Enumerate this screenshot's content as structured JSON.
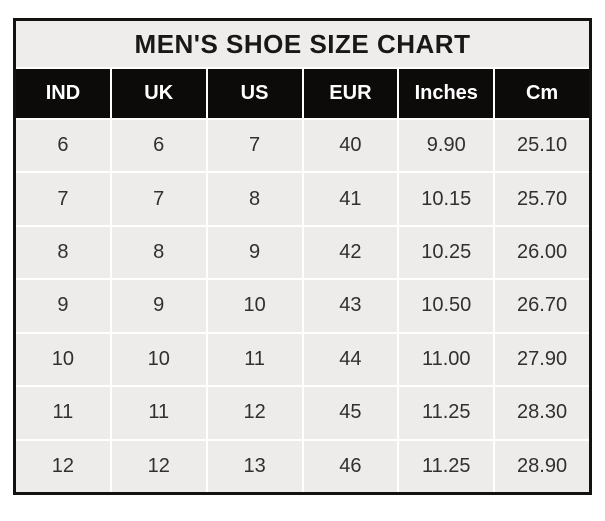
{
  "page": {
    "background_color": "#ffffff"
  },
  "table": {
    "title": "MEN'S SHOE SIZE CHART",
    "border_color": "#141211",
    "title_bg_color": "#efedec",
    "header_bg_color": "#0d0b0a",
    "header_text_color": "#ffffff",
    "cell_bg_color": "#eeeceb",
    "cell_text_color": "#32302f"
  },
  "chart_data": {
    "type": "table",
    "title": "MEN'S SHOE SIZE CHART",
    "columns": [
      "IND",
      "UK",
      "US",
      "EUR",
      "Inches",
      "Cm"
    ],
    "rows": [
      [
        "6",
        "6",
        "7",
        "40",
        "9.90",
        "25.10"
      ],
      [
        "7",
        "7",
        "8",
        "41",
        "10.15",
        "25.70"
      ],
      [
        "8",
        "8",
        "9",
        "42",
        "10.25",
        "26.00"
      ],
      [
        "9",
        "9",
        "10",
        "43",
        "10.50",
        "26.70"
      ],
      [
        "10",
        "10",
        "11",
        "44",
        "11.00",
        "27.90"
      ],
      [
        "11",
        "11",
        "12",
        "45",
        "11.25",
        "28.30"
      ],
      [
        "12",
        "12",
        "13",
        "46",
        "11.25",
        "28.90"
      ]
    ],
    "layout": {
      "title_row": "top, spans all columns",
      "header_row": "black background, white bold text",
      "grid": "white 2px separators between light-gray cells, thick black outer border"
    }
  }
}
